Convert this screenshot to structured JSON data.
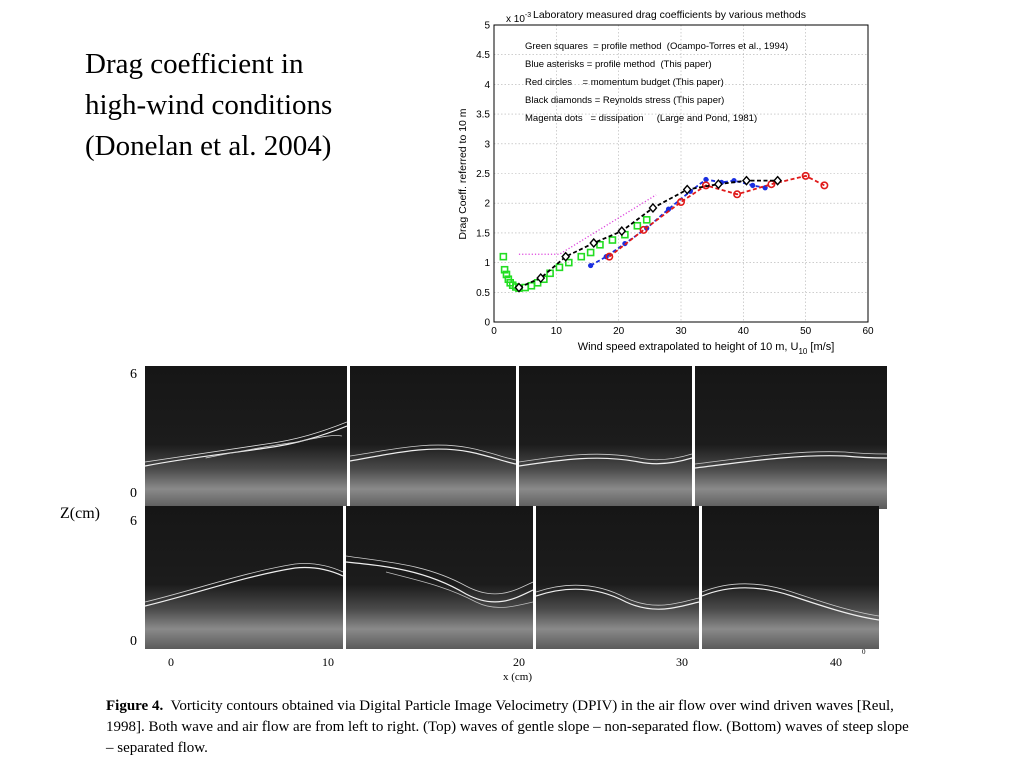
{
  "slide": {
    "title_lines": [
      "Drag coefficient in",
      "high-wind conditions",
      "(Donelan et al. 2004)"
    ]
  },
  "chart_data": {
    "type": "scatter",
    "title": "Laboratory measured drag coefficients by various methods",
    "xlabel_main": "Wind speed extrapolated to height of 10 m, U",
    "xlabel_sub": "10",
    "xlabel_unit": " [m/s]",
    "ylabel": "Drag Coeff. referred to 10 m",
    "y_multiplier": "x 10",
    "y_multiplier_exp": "-3",
    "xlim": [
      0,
      60
    ],
    "ylim": [
      0,
      5
    ],
    "xticks": [
      "0",
      "10",
      "20",
      "30",
      "40",
      "50",
      "60"
    ],
    "yticks": [
      "0",
      "0.5",
      "1",
      "1.5",
      "2",
      "2.5",
      "3",
      "3.5",
      "4",
      "4.5",
      "5"
    ],
    "grid": true,
    "legend_lines": [
      "Green squares  = profile method  (Ocampo-Torres et al., 1994)",
      "Blue asterisks = profile method  (This paper)",
      "Red circles    = momentum budget (This paper)",
      "Black diamonds = Reynolds stress (This paper)",
      "Magenta dots   = dissipation     (Large and Pond, 1981)"
    ],
    "series": [
      {
        "name": "Green squares",
        "color": "#22dd22",
        "marker": "square",
        "x": [
          1.5,
          1.7,
          2.0,
          2.3,
          2.6,
          3.0,
          3.5,
          4.0,
          5.0,
          6.0,
          7.0,
          8.0,
          9.0,
          10.5,
          12.0,
          14.0,
          15.5,
          17.0,
          19.0,
          21.0,
          23.0,
          24.5
        ],
        "y": [
          1.1,
          0.88,
          0.8,
          0.72,
          0.66,
          0.62,
          0.59,
          0.57,
          0.58,
          0.61,
          0.66,
          0.72,
          0.82,
          0.92,
          1.0,
          1.1,
          1.17,
          1.3,
          1.38,
          1.47,
          1.62,
          1.72
        ]
      },
      {
        "name": "Blue asterisks",
        "color": "#1a2ee0",
        "marker": "dot",
        "line": "dashed",
        "x": [
          15.5,
          18.0,
          21.0,
          24.5,
          28.0,
          31.5,
          34.0,
          36.5,
          38.5,
          41.5,
          43.5
        ],
        "y": [
          0.95,
          1.1,
          1.32,
          1.58,
          1.9,
          2.2,
          2.4,
          2.35,
          2.38,
          2.3,
          2.26
        ]
      },
      {
        "name": "Red circles",
        "color": "#e01a1a",
        "marker": "circle",
        "line": "dashed",
        "x": [
          18.5,
          24.0,
          30.0,
          34.0,
          39.0,
          44.5,
          50.0,
          53.0
        ],
        "y": [
          1.1,
          1.55,
          2.02,
          2.3,
          2.15,
          2.32,
          2.46,
          2.3
        ]
      },
      {
        "name": "Black diamonds",
        "color": "#000000",
        "marker": "diamond",
        "line": "dashed",
        "x": [
          4.0,
          7.5,
          11.5,
          16.0,
          20.5,
          25.5,
          31.0,
          36.0,
          40.5,
          45.5
        ],
        "y": [
          0.58,
          0.74,
          1.1,
          1.33,
          1.53,
          1.92,
          2.23,
          2.32,
          2.38,
          2.38
        ]
      },
      {
        "name": "Magenta dots",
        "color": "#dd44dd",
        "marker": "none",
        "line": "dotted",
        "x": [
          4.0,
          10.5,
          26.0
        ],
        "y": [
          1.14,
          1.14,
          2.14
        ]
      }
    ]
  },
  "figure": {
    "z_label": "Z(cm)",
    "top_y_max": "6",
    "top_y_min": "0",
    "bottom_y_max": "6",
    "bottom_y_min": "0",
    "x_ticks": [
      "0",
      "10",
      "20",
      "30",
      "40"
    ],
    "x_corner": "0",
    "x_label": "x (cm)"
  },
  "caption": {
    "label": "Figure 4.",
    "text": "Vorticity contours obtained via Digital Particle Image Velocimetry (DPIV) in the air flow over wind driven waves [Reul, 1998].  Both wave and air flow are from left to right.  (Top) waves of gentle slope – non-separated flow.  (Bottom) waves of steep slope – separated flow."
  }
}
